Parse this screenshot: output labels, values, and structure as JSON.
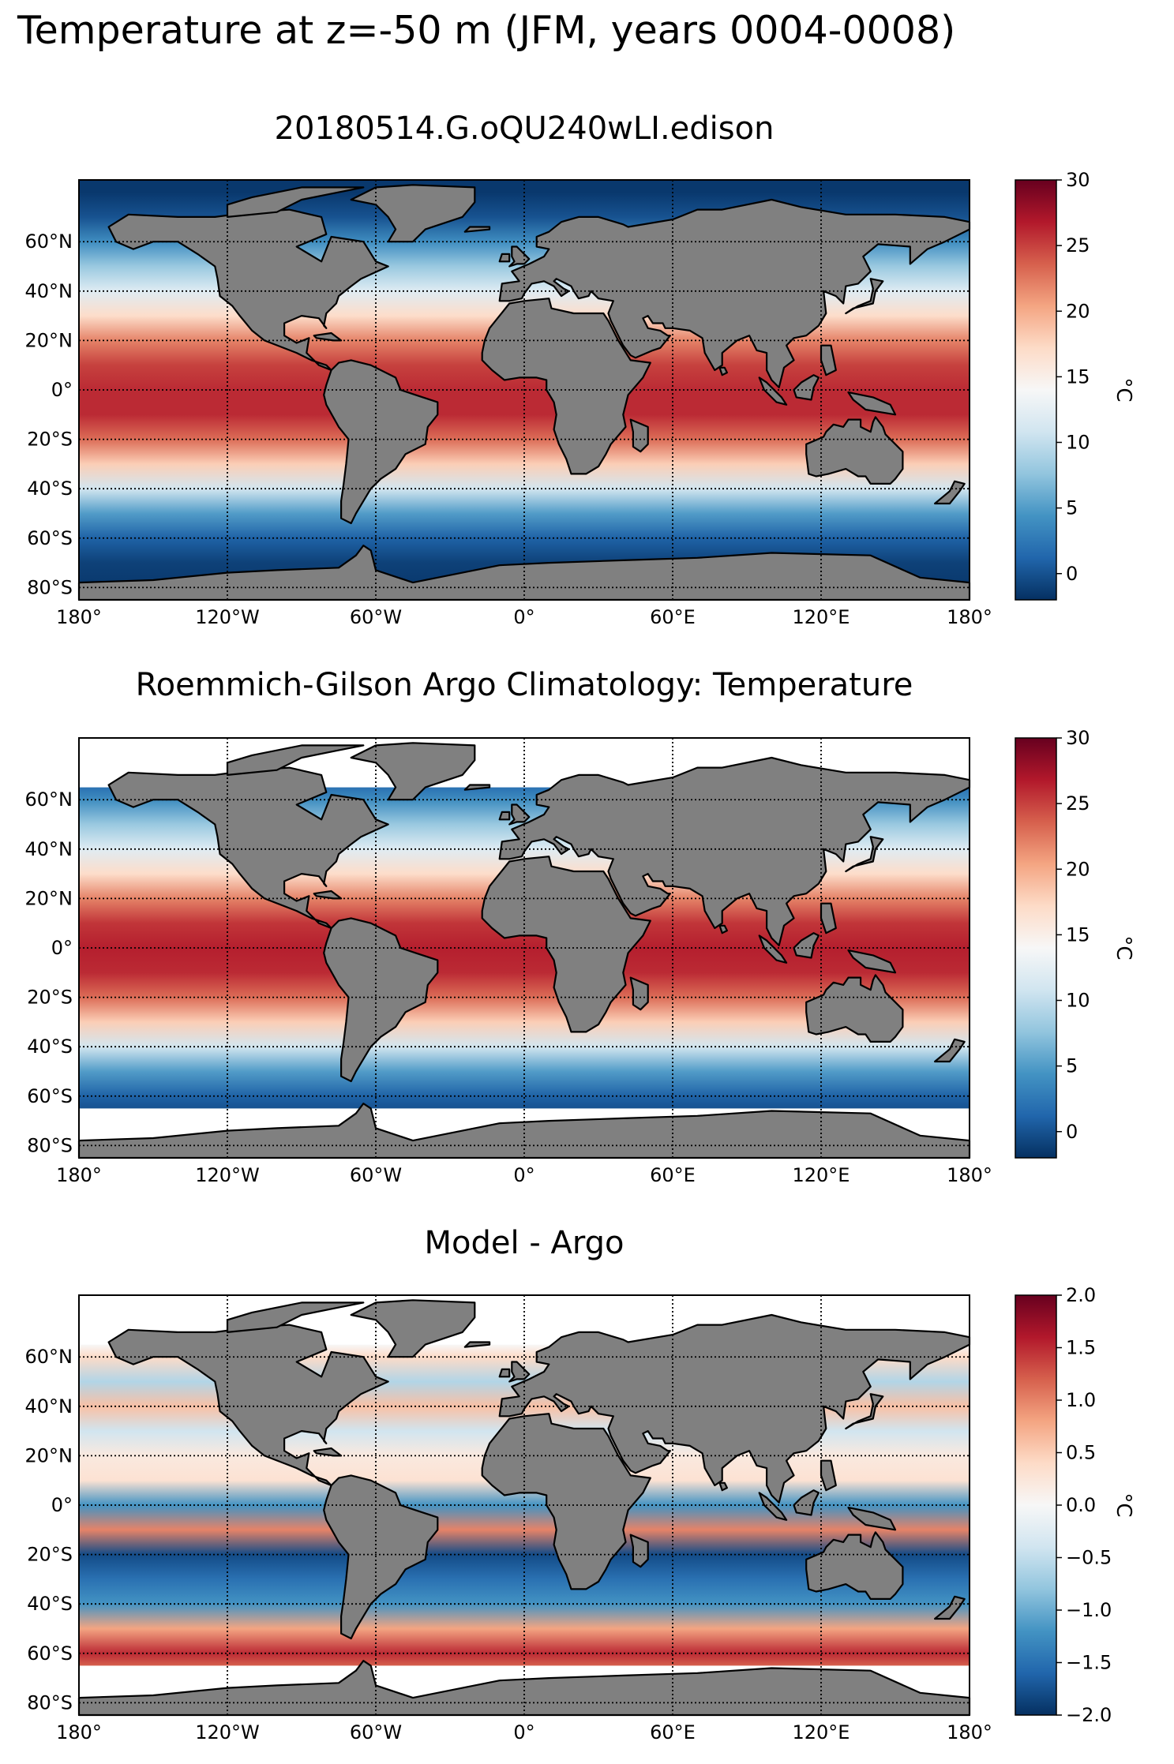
{
  "suptitle": "Temperature at z=-50 m (JFM, years 0004-0008)",
  "colors": {
    "land": "#808080",
    "coast": "#000000",
    "grid": "#000000",
    "colormap": [
      "#053061",
      "#2166ac",
      "#4393c3",
      "#92c5de",
      "#d1e5f0",
      "#f7f7f7",
      "#fddbc7",
      "#f4a582",
      "#d6604d",
      "#b2182b",
      "#67001f"
    ]
  },
  "chart_data": [
    {
      "type": "heatmap",
      "title": "20180514.G.oQU240wLI.edison",
      "field": "sea temperature at 50 m depth, JFM mean",
      "xlim": [
        -180,
        180
      ],
      "ylim": [
        -85,
        85
      ],
      "grid": true,
      "x_ticks": [
        -180,
        -120,
        -60,
        0,
        60,
        120,
        180
      ],
      "x_tick_labels": [
        "180°",
        "120°W",
        "60°W",
        "0°",
        "60°E",
        "120°E",
        "180°"
      ],
      "y_ticks": [
        -80,
        -60,
        -40,
        -20,
        0,
        20,
        40,
        60
      ],
      "y_tick_labels": [
        "80°S",
        "60°S",
        "40°S",
        "20°S",
        "0°",
        "20°N",
        "40°N",
        "60°N"
      ],
      "colorbar": {
        "vmin": -2,
        "vmax": 30,
        "ticks": [
          0,
          5,
          10,
          15,
          20,
          25,
          30
        ],
        "tick_labels": [
          "0",
          "5",
          "10",
          "15",
          "20",
          "25",
          "30"
        ],
        "label": "°C",
        "colormap": "RdBu_r"
      },
      "zonal_profile": {
        "lat": [
          -80,
          -70,
          -60,
          -50,
          -40,
          -30,
          -20,
          -10,
          0,
          10,
          20,
          30,
          40,
          50,
          60,
          70,
          80
        ],
        "value": [
          -1.5,
          -1,
          1,
          5,
          11,
          18,
          23,
          26,
          26,
          25,
          22,
          17,
          12,
          8,
          4,
          0,
          -1.5
        ]
      }
    },
    {
      "type": "heatmap",
      "title": "Roemmich-Gilson Argo Climatology: Temperature",
      "field": "sea temperature at 50 m depth, JFM climatology",
      "xlim": [
        -180,
        180
      ],
      "ylim": [
        -85,
        85
      ],
      "grid": true,
      "x_ticks": [
        -180,
        -120,
        -60,
        0,
        60,
        120,
        180
      ],
      "x_tick_labels": [
        "180°",
        "120°W",
        "60°W",
        "0°",
        "60°E",
        "120°E",
        "180°"
      ],
      "y_ticks": [
        -80,
        -60,
        -40,
        -20,
        0,
        20,
        40,
        60
      ],
      "y_tick_labels": [
        "80°S",
        "60°S",
        "40°S",
        "20°S",
        "0°",
        "20°N",
        "40°N",
        "60°N"
      ],
      "colorbar": {
        "vmin": -2,
        "vmax": 30,
        "ticks": [
          0,
          5,
          10,
          15,
          20,
          25,
          30
        ],
        "tick_labels": [
          "0",
          "5",
          "10",
          "15",
          "20",
          "25",
          "30"
        ],
        "label": "°C",
        "colormap": "RdBu_r"
      },
      "zonal_profile": {
        "lat": [
          -65,
          -60,
          -50,
          -40,
          -30,
          -20,
          -10,
          0,
          10,
          20,
          30,
          40,
          50,
          60,
          65
        ],
        "value": [
          0,
          1,
          5,
          11,
          18,
          23,
          26,
          26.5,
          25.5,
          22,
          17,
          12,
          8,
          4,
          2
        ]
      },
      "data_lat_range": [
        -65,
        65
      ]
    },
    {
      "type": "heatmap",
      "title": "Model - Argo",
      "field": "temperature difference, model minus Argo",
      "xlim": [
        -180,
        180
      ],
      "ylim": [
        -85,
        85
      ],
      "grid": true,
      "x_ticks": [
        -180,
        -120,
        -60,
        0,
        60,
        120,
        180
      ],
      "x_tick_labels": [
        "180°",
        "120°W",
        "60°W",
        "0°",
        "60°E",
        "120°E",
        "180°"
      ],
      "y_ticks": [
        -80,
        -60,
        -40,
        -20,
        0,
        20,
        40,
        60
      ],
      "y_tick_labels": [
        "80°S",
        "60°S",
        "40°S",
        "20°S",
        "0°",
        "20°N",
        "40°N",
        "60°N"
      ],
      "colorbar": {
        "vmin": -2,
        "vmax": 2,
        "ticks": [
          -2.0,
          -1.5,
          -1.0,
          -0.5,
          0.0,
          0.5,
          1.0,
          1.5,
          2.0
        ],
        "tick_labels": [
          "−2.0",
          "−1.5",
          "−1.0",
          "−0.5",
          "0.0",
          "0.5",
          "1.0",
          "1.5",
          "2.0"
        ],
        "label": "°C",
        "colormap": "RdBu_r"
      },
      "zonal_profile": {
        "lat": [
          -65,
          -60,
          -50,
          -40,
          -30,
          -20,
          -10,
          0,
          10,
          20,
          30,
          40,
          50,
          60,
          65
        ],
        "value": [
          1.2,
          1.5,
          0.8,
          -1.2,
          -1.5,
          -1.8,
          1.0,
          -1.2,
          0.3,
          0.2,
          -0.4,
          0.6,
          -0.6,
          0.4,
          0.0
        ]
      },
      "data_lat_range": [
        -65,
        65
      ]
    }
  ]
}
